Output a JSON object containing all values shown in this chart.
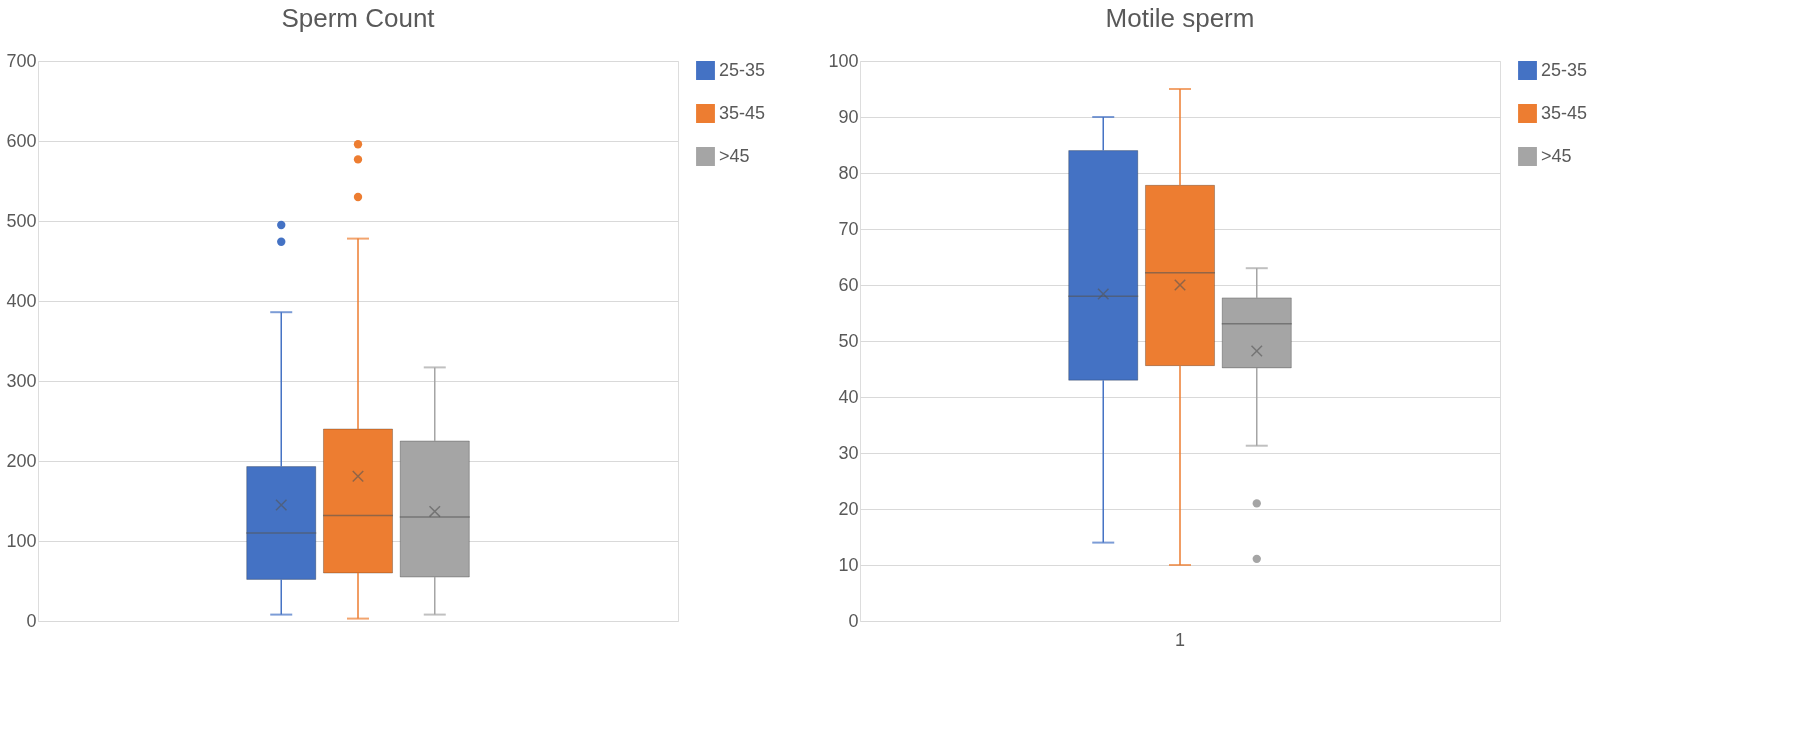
{
  "chart_data": [
    {
      "type": "box",
      "title": "Sperm Count",
      "categories": [
        null
      ],
      "ylim": [
        0,
        700
      ],
      "yticks": [
        0,
        100,
        200,
        300,
        400,
        500,
        600,
        700
      ],
      "grid": "y",
      "legend": "right",
      "series": [
        {
          "name": "25-35",
          "color": "#4472c4",
          "boxes": [
            {
              "low": 8,
              "q1": 52,
              "median": 110,
              "q3": 193,
              "high": 386,
              "mean": 145,
              "outliers": [
                474,
                495
              ]
            }
          ]
        },
        {
          "name": "35-45",
          "color": "#ed7d31",
          "boxes": [
            {
              "low": 3,
              "q1": 60,
              "median": 132,
              "q3": 240,
              "high": 478,
              "mean": 181,
              "outliers": [
                530,
                577,
                596
              ]
            }
          ]
        },
        {
          "name": ">45",
          "color": "#a5a5a5",
          "boxes": [
            {
              "low": 8,
              "q1": 55,
              "median": 130,
              "q3": 225,
              "high": 317,
              "mean": 137
            }
          ]
        }
      ]
    },
    {
      "type": "box",
      "title": "Motile sperm",
      "categories": [
        "1"
      ],
      "ylim": [
        0,
        100
      ],
      "yticks": [
        0,
        10,
        20,
        30,
        40,
        50,
        60,
        70,
        80,
        90,
        100
      ],
      "grid": "y",
      "legend": "right",
      "series": [
        {
          "name": "25-35",
          "color": "#4472c4",
          "boxes": [
            {
              "low": 14,
              "q1": 43,
              "median": 58,
              "q3": 84,
              "high": 90,
              "mean": 58.4
            }
          ]
        },
        {
          "name": "35-45",
          "color": "#ed7d31",
          "boxes": [
            {
              "low": 10,
              "q1": 45.6,
              "median": 62.2,
              "q3": 77.8,
              "high": 95,
              "mean": 60
            }
          ]
        },
        {
          "name": ">45",
          "color": "#a5a5a5",
          "boxes": [
            {
              "low": 31.3,
              "q1": 45.2,
              "median": 53.1,
              "q3": 57.7,
              "high": 63,
              "mean": 48.2,
              "outliers": [
                21,
                11.1
              ]
            }
          ]
        }
      ]
    }
  ]
}
